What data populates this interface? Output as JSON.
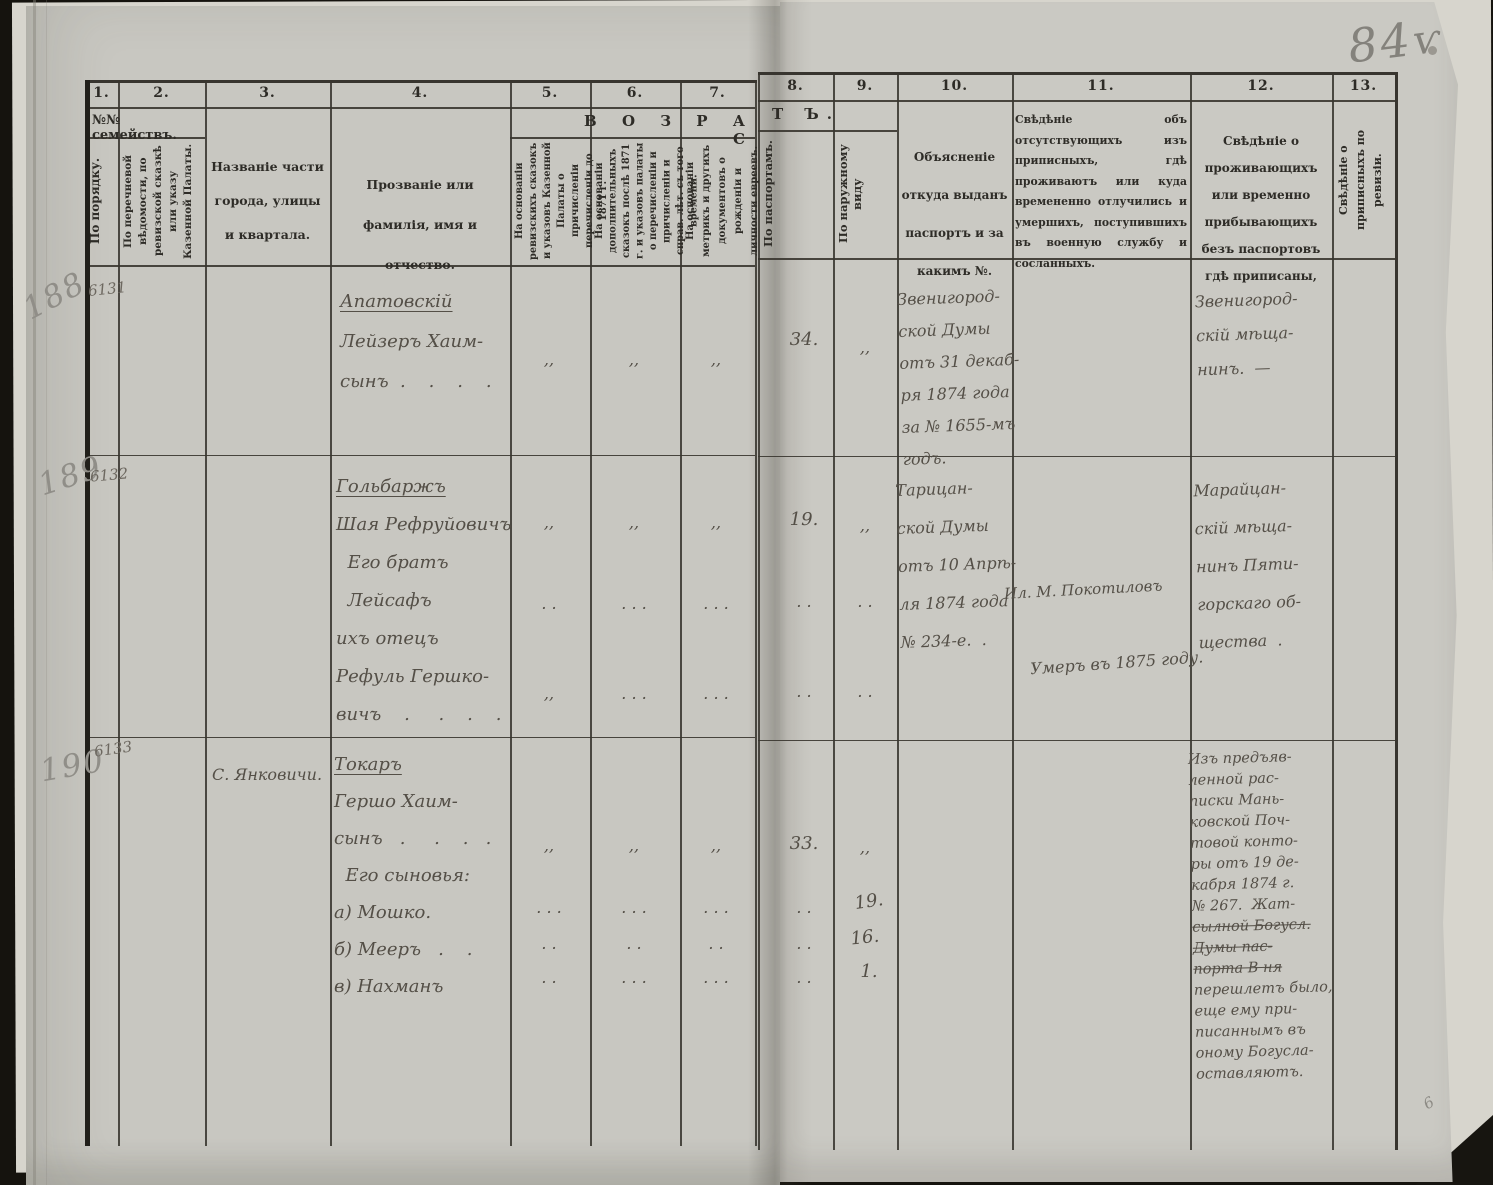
{
  "page": {
    "folio": "84",
    "folio_mark": "ѵ",
    "corner_mark": "6"
  },
  "table": {
    "col_numbers": [
      "1.",
      "2.",
      "3.",
      "4.",
      "5.",
      "6.",
      "7.",
      "8.",
      "9.",
      "10.",
      "11.",
      "12.",
      "13."
    ],
    "group_headers": {
      "families": "№№ семействъ.",
      "age_left": "В О З Р А С",
      "age_right": "Т Ъ."
    },
    "columns": {
      "c1": "По порядку.",
      "c2": "По перечневой вѣдомости, по ревизской сказкѣ или указу Казенной Палаты.",
      "c3": "Названіе части города, улицы и квартала.",
      "c4": "Прозваніе или фамилія, имя и отчество.",
      "c5": "На основаніи ревизскихъ сказокъ и указовъ Казенной Палаты о причисленіи перечисленіи до 1871 г.",
      "c6": "На основаніи дополнительныхъ сказокъ послѣ 1871 г. и указовъ палаты о перечисленіи и причисленіи и справ. лѣт. съ того времени.",
      "c7": "На основаніи метрикъ и другихъ документовъ о рожденіи и личности евреевъ.",
      "c8": "По паспортамъ.",
      "c9": "По наружному виду",
      "c10": "Объясненіе откуда выданъ паспортъ и за какимъ №.",
      "c11": "Свѣдѣніе объ отсутствующихъ изъ приписныхъ, гдѣ проживаютъ или куда времененно отлучились и умершихъ, поступившихъ въ военную службу и сосланныхъ.",
      "c12": "Свѣдѣніе о проживающихъ или временно прибывающихъ безъ паспортовъ гдѣ приписаны,",
      "c13": "Свѣдѣніе о приписныхъ по ревизіи."
    }
  },
  "rows": [
    {
      "margin": "188",
      "family_no": "6131",
      "names": [
        {
          "t": "Апатовскій",
          "u": true
        },
        "Лейзеръ Хаим-",
        "сынъ  .    .    .    ."
      ],
      "dittos": [
        [
          ",,",
          ",,",
          ",,"
        ]
      ],
      "ages": [
        {
          "c8": "34.",
          "c9": ",,"
        }
      ],
      "passport": [
        "Звенигород-",
        "ской Думы",
        "отъ 31 декаб-",
        "ря 1874 года",
        "за № 1655-мъ",
        "годъ."
      ],
      "residence": [
        "Звенигород-",
        "скій мѣща-",
        "нинъ.  —"
      ]
    },
    {
      "margin": "189",
      "family_no": "6132",
      "names": [
        {
          "t": "Гольбаржъ",
          "u": true
        },
        "Шая Рефруйовичъ",
        "  Его братъ",
        "  Лейсафъ",
        "ихъ отецъ",
        "Рефуль Гершко-",
        "вичъ    .     .    .    ."
      ],
      "dittos": [
        [
          ",,",
          ",,",
          ",,"
        ],
        [
          ". .",
          ". . .",
          ". . ."
        ],
        [
          ",,",
          ". . .",
          ". . ."
        ]
      ],
      "ages": [
        {
          "c8": "19.",
          "c9": ",,"
        },
        {
          "c8": ". .",
          "c9": ". ."
        },
        {
          "c8": ". .",
          "c9": ". ."
        }
      ],
      "passport": [
        "Тарицан-",
        "ской Думы",
        "отъ 10 Апрѣ-",
        "ля 1874 года",
        "№ 234-е.  ."
      ],
      "absent": [
        "Ил. М. Покотиловъ",
        "Умеръ въ 1875 году."
      ],
      "residence": [
        "Марайцан-",
        "скій мѣща-",
        "нинъ Пяти-",
        "горскаго об-",
        "щества  ."
      ]
    },
    {
      "margin": "190",
      "family_no": "6133",
      "place": "С. Янковичи.",
      "names": [
        {
          "t": "Токаръ",
          "u": true
        },
        "Гершо Хаим-",
        "сынъ   .     .    .   .",
        "  Его сыновья:",
        "а) Мошко.",
        "б) Мееръ   .    .",
        "в) Нахманъ"
      ],
      "dittos": [
        [
          ",,",
          ",,",
          ",,"
        ],
        [
          ". . .",
          ". . .",
          ". . ."
        ],
        [
          ". .",
          ". .",
          ". ."
        ],
        [
          ". .",
          ". . .",
          ". . ."
        ]
      ],
      "ages": [
        {
          "c8": "33.",
          "c9": ",,"
        },
        {
          "c8": ". .",
          "c9": "19."
        },
        {
          "c8": ". .",
          "c9": "16."
        },
        {
          "c8": ". .",
          "c9": "1."
        }
      ],
      "residence": [
        "Изъ предъяв-",
        "ленной рас-",
        "писки Мань-",
        "ковской Поч-",
        "товой конто-",
        "ры отъ 19 де-",
        "кабря 1874 г.",
        "№ 267.  Жат-",
        {
          "t": "сылной Богусл.",
          "s": true
        },
        {
          "t": "Думы пас-",
          "s": true
        },
        {
          "t": "порта В ня",
          "s": true
        },
        "перешлетъ было,",
        "еще ему при-",
        "писаннымъ въ",
        "оному Богусла-",
        "оставляютъ."
      ]
    }
  ]
}
